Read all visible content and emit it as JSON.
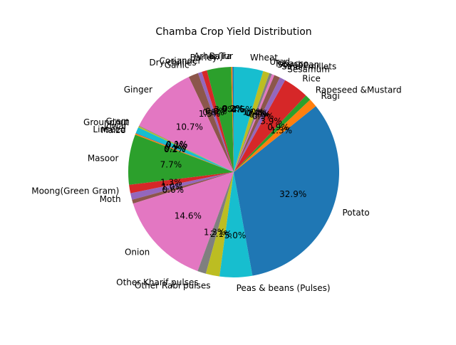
{
  "chart_data": {
    "type": "pie",
    "title": "Chamba Crop Yield Distribution",
    "start_angle_deg": 90,
    "direction": "counterclockwise",
    "slices": [
      {
        "label": "Arhar/Tur",
        "value": 0.2,
        "pct_label": "0.2%",
        "color": "#1f77b4"
      },
      {
        "label": "Bajra",
        "value": 0.2,
        "pct_label": "0.2%",
        "color": "#ff7f0e"
      },
      {
        "label": "Barley",
        "value": 3.7,
        "pct_label": "3.7%",
        "color": "#2ca02c"
      },
      {
        "label": "Coriander",
        "value": 0.8,
        "pct_label": "0.8%",
        "color": "#d62728"
      },
      {
        "label": "Dry chillies",
        "value": 0.6,
        "pct_label": "0.6%",
        "color": "#9467bd"
      },
      {
        "label": "Garlic",
        "value": 1.5,
        "pct_label": "1.5%",
        "color": "#8c564b"
      },
      {
        "label": "Ginger",
        "value": 10.7,
        "pct_label": "10.7%",
        "color": "#e377c2"
      },
      {
        "label": "Gram",
        "value": 0.1,
        "pct_label": "0.1%",
        "color": "#7f7f7f"
      },
      {
        "label": "Groundnut",
        "value": 0.2,
        "pct_label": "0.2%",
        "color": "#bcbd22"
      },
      {
        "label": "Jowar",
        "value": 0.9,
        "pct_label": "0.9%",
        "color": "#17becf"
      },
      {
        "label": "Linseed",
        "value": 0.1,
        "pct_label": "0.1%",
        "color": "#1f77b4"
      },
      {
        "label": "Maize",
        "value": 0.2,
        "pct_label": "0.2%",
        "color": "#ff7f0e"
      },
      {
        "label": "Masoor",
        "value": 7.7,
        "pct_label": "7.7%",
        "color": "#2ca02c"
      },
      {
        "label": "Moong(Green Gram)",
        "value": 1.3,
        "pct_label": "1.3%",
        "color": "#d62728"
      },
      {
        "label": "Moth",
        "value": 1.0,
        "pct_label": "1.0%",
        "color": "#9467bd"
      },
      {
        "label": "",
        "value": 0.6,
        "pct_label": "0.6%",
        "color": "#8c564b"
      },
      {
        "label": "Onion",
        "value": 14.6,
        "pct_label": "14.6%",
        "color": "#e377c2"
      },
      {
        "label": "Other Kharif pulses",
        "value": 1.3,
        "pct_label": "1.3%",
        "color": "#7f7f7f"
      },
      {
        "label": "Other Rabi pulses",
        "value": 2.1,
        "pct_label": "2.1%",
        "color": "#bcbd22"
      },
      {
        "label": "Peas & beans (Pulses)",
        "value": 5.0,
        "pct_label": "5.0%",
        "color": "#17becf"
      },
      {
        "label": "Potato",
        "value": 32.9,
        "pct_label": "32.9%",
        "color": "#1f77b4"
      },
      {
        "label": "Ragi",
        "value": 1.3,
        "pct_label": "1.3%",
        "color": "#ff7f0e"
      },
      {
        "label": "Rapeseed &Mustard",
        "value": 0.9,
        "pct_label": "0.9%",
        "color": "#2ca02c"
      },
      {
        "label": "Rice",
        "value": 3.9,
        "pct_label": "3.9%",
        "color": "#d62728"
      },
      {
        "label": "Sesamum",
        "value": 0.9,
        "pct_label": "0.9%",
        "color": "#9467bd"
      },
      {
        "label": "Small millets",
        "value": 0.9,
        "pct_label": "0.9%",
        "color": "#8c564b"
      },
      {
        "label": "Soyabean",
        "value": 0.4,
        "pct_label": "0.4%",
        "color": "#e377c2"
      },
      {
        "label": "Tobacco",
        "value": 0.4,
        "pct_label": "0.4%",
        "color": "#7f7f7f"
      },
      {
        "label": "Urad",
        "value": 1.0,
        "pct_label": "1.0%",
        "color": "#bcbd22"
      },
      {
        "label": "Wheat",
        "value": 4.5,
        "pct_label": "4.5%",
        "color": "#17becf"
      }
    ]
  }
}
